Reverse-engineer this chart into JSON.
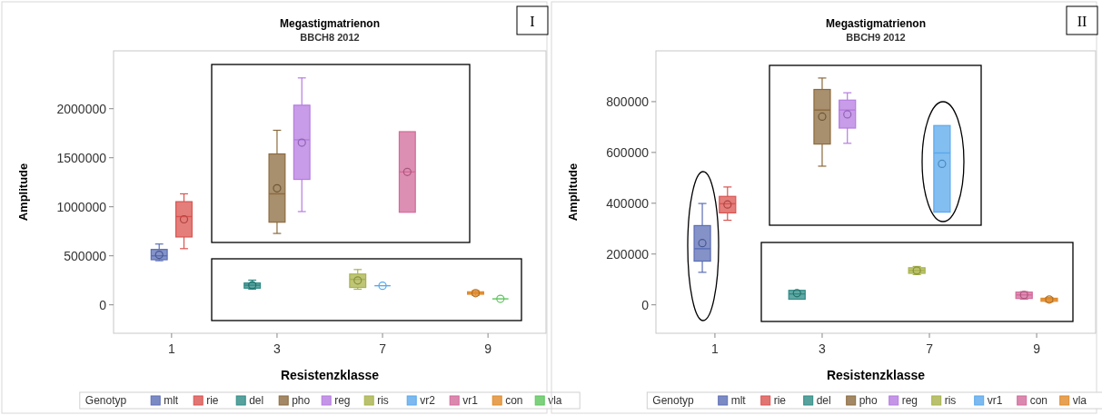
{
  "chart_data": [
    {
      "type": "box",
      "title": "Megastigmatrienon",
      "subtitle": "BBCH8 2012",
      "xlabel": "Resistenzklasse",
      "ylabel": "Amplitude",
      "legend_title": "Genotyp",
      "legend": "bottom",
      "annotations": [
        "I"
      ],
      "categories": [
        "1",
        "3",
        "7",
        "9"
      ],
      "ylim": [
        -290000,
        2590000
      ],
      "yticks": [
        0,
        500000,
        1000000,
        1500000,
        2000000
      ],
      "series": [
        {
          "name": "mlt",
          "color": "#5b6db5",
          "boxes": [
            {
              "low": 450000,
              "q1": 460000,
              "median": 500000,
              "q3": 565000,
              "high": 620000,
              "mean": 510000
            },
            null,
            null,
            null
          ]
        },
        {
          "name": "rie",
          "color": "#d9534f",
          "boxes": [
            {
              "low": 573000,
              "q1": 692000,
              "median": 900000,
              "q3": 1052000,
              "high": 1132000,
              "mean": 872000
            },
            null,
            null,
            null
          ]
        },
        {
          "name": "del",
          "color": "#2e8b85",
          "boxes": [
            null,
            {
              "low": 160000,
              "q1": 170000,
              "median": 200000,
              "q3": 223000,
              "high": 252000,
              "mean": 200000
            },
            null,
            null
          ]
        },
        {
          "name": "pho",
          "color": "#8b6a3e",
          "boxes": [
            null,
            {
              "low": 728000,
              "q1": 843000,
              "median": 1132000,
              "q3": 1539000,
              "high": 1780000,
              "mean": 1189000
            },
            null,
            null
          ]
        },
        {
          "name": "reg",
          "color": "#b57be0",
          "boxes": [
            null,
            {
              "low": 951000,
              "q1": 1279000,
              "median": 1683000,
              "q3": 2036000,
              "high": 2314000,
              "mean": 1654000
            },
            null,
            null
          ]
        },
        {
          "name": "ris",
          "color": "#a8b24a",
          "boxes": [
            null,
            null,
            {
              "low": 159000,
              "q1": 177000,
              "median": 260000,
              "q3": 314000,
              "high": 360000,
              "mean": 249000
            },
            null
          ]
        },
        {
          "name": "vr2",
          "color": "#5aa8ec",
          "boxes": [
            null,
            null,
            {
              "low": 195000,
              "q1": 195000,
              "median": 195000,
              "q3": 195000,
              "high": 195000,
              "mean": 195000
            },
            null
          ]
        },
        {
          "name": "vr1",
          "color": "#d26a9a",
          "boxes": [
            null,
            null,
            {
              "low": 944000,
              "q1": 944000,
              "median": 1355000,
              "q3": 1766000,
              "high": 1766000,
              "mean": 1355000
            },
            null
          ]
        },
        {
          "name": "con",
          "color": "#e08a2a",
          "boxes": [
            null,
            null,
            null,
            {
              "low": 97000,
              "q1": 108000,
              "median": 119000,
              "q3": 133000,
              "high": 144000,
              "mean": 119000
            }
          ]
        },
        {
          "name": "vla",
          "color": "#5cc55c",
          "boxes": [
            null,
            null,
            null,
            {
              "low": 61000,
              "q1": 61000,
              "median": 61000,
              "q3": 61000,
              "high": 61000,
              "mean": 61000
            }
          ]
        }
      ]
    },
    {
      "type": "box",
      "title": "Megastigmatrienon",
      "subtitle": "BBCH9 2012",
      "xlabel": "Resistenzklasse",
      "ylabel": "Amplitude",
      "legend_title": "Genotyp",
      "legend": "bottom",
      "annotations": [
        "II"
      ],
      "categories": [
        "1",
        "3",
        "7",
        "9"
      ],
      "ylim": [
        -112000,
        1000000
      ],
      "yticks": [
        0,
        200000,
        400000,
        600000,
        800000
      ],
      "series": [
        {
          "name": "mlt",
          "color": "#5b6db5",
          "boxes": [
            {
              "low": 128000,
              "q1": 172000,
              "median": 221000,
              "q3": 312000,
              "high": 399000,
              "mean": 243000
            },
            null,
            null,
            null
          ]
        },
        {
          "name": "rie",
          "color": "#d9534f",
          "boxes": [
            {
              "low": 333000,
              "q1": 362000,
              "median": 398000,
              "q3": 427000,
              "high": 464000,
              "mean": 395000
            },
            null,
            null,
            null
          ]
        },
        {
          "name": "del",
          "color": "#2e8b85",
          "boxes": [
            null,
            {
              "low": 22000,
              "q1": 22000,
              "median": 43000,
              "q3": 57000,
              "high": 57000,
              "mean": 46000
            },
            null,
            null
          ]
        },
        {
          "name": "pho",
          "color": "#8b6a3e",
          "boxes": [
            null,
            {
              "low": 546000,
              "q1": 633000,
              "median": 767000,
              "q3": 848000,
              "high": 893000,
              "mean": 741000
            },
            null,
            null
          ]
        },
        {
          "name": "reg",
          "color": "#b57be0",
          "boxes": [
            null,
            {
              "low": 636000,
              "q1": 696000,
              "median": 767000,
              "q3": 806000,
              "high": 835000,
              "mean": 750000
            },
            null,
            null
          ]
        },
        {
          "name": "ris",
          "color": "#a8b24a",
          "boxes": [
            null,
            null,
            {
              "low": 119000,
              "q1": 124000,
              "median": 135000,
              "q3": 146000,
              "high": 151000,
              "mean": 135000
            },
            null
          ]
        },
        {
          "name": "vr1",
          "color": "#5aa8ec",
          "boxes": [
            null,
            null,
            {
              "low": 365000,
              "q1": 365000,
              "median": 598000,
              "q3": 706000,
              "high": 706000,
              "mean": 555000
            },
            null
          ]
        },
        {
          "name": "con",
          "color": "#d26a9a",
          "boxes": [
            null,
            null,
            null,
            {
              "low": 22000,
              "q1": 25000,
              "median": 39000,
              "q3": 50000,
              "high": 52000,
              "mean": 39000
            }
          ]
        },
        {
          "name": "vla",
          "color": "#e08a2a",
          "boxes": [
            null,
            null,
            null,
            {
              "low": 11000,
              "q1": 14000,
              "median": 21000,
              "q3": 26000,
              "high": 29000,
              "mean": 21000
            }
          ]
        }
      ]
    }
  ]
}
